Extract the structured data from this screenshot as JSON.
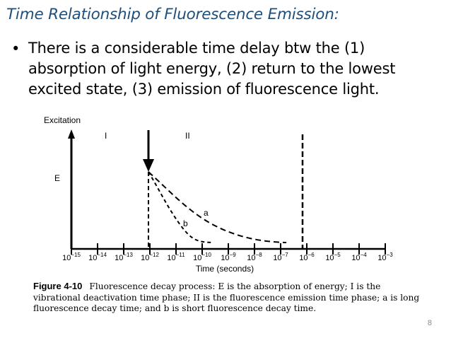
{
  "slide": {
    "title": "Time Relationship of Fluorescence Emission:",
    "bullet_lines": [
      "There is a considerable time delay btw the (1)",
      "absorption of light energy, (2) return to the lowest",
      "excited state, (3) emission of fluorescence light."
    ],
    "page_number": "8"
  },
  "figure": {
    "y_axis_label": "Excitation",
    "energy_label": "E",
    "phase_labels": [
      "I",
      "II"
    ],
    "curve_labels": [
      "a",
      "b"
    ],
    "x_axis_label": "Time (seconds)",
    "x_ticks": [
      {
        "base": "10",
        "exp": "−15"
      },
      {
        "base": "10",
        "exp": "−14"
      },
      {
        "base": "10",
        "exp": "−13"
      },
      {
        "base": "10",
        "exp": "−12"
      },
      {
        "base": "10",
        "exp": "−11"
      },
      {
        "base": "10",
        "exp": "−10"
      },
      {
        "base": "10",
        "exp": "−9"
      },
      {
        "base": "10",
        "exp": "−8"
      },
      {
        "base": "10",
        "exp": "−7"
      },
      {
        "base": "10",
        "exp": "−6"
      },
      {
        "base": "10",
        "exp": "−5"
      },
      {
        "base": "10",
        "exp": "−4"
      },
      {
        "base": "10",
        "exp": "−3"
      }
    ],
    "caption_label": "Figure 4-10",
    "caption_text": "Fluorescence decay process: E is the absorption of energy; I is the vibrational deactivation time phase; II is the fluorescence emission time phase; a is long fluorescence decay time; and b is short fluorescence decay time."
  }
}
